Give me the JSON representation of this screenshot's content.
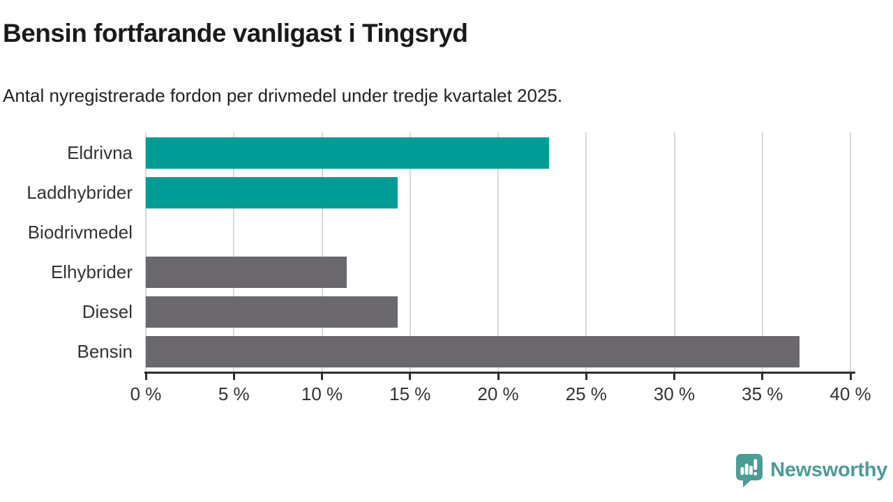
{
  "title": "Bensin fortfarande vanligast i Tingsryd",
  "subtitle": "Antal nyregistrerade fordon per drivmedel under tredje kvartalet 2025.",
  "chart_data": {
    "type": "bar",
    "orientation": "horizontal",
    "title": "Bensin fortfarande vanligast i Tingsryd",
    "subtitle": "Antal nyregistrerade fordon per drivmedel under tredje kvartalet 2025.",
    "categories": [
      "Eldrivna",
      "Laddhybrider",
      "Biodrivmedel",
      "Elhybrider",
      "Diesel",
      "Bensin"
    ],
    "values": [
      22.9,
      14.3,
      0,
      11.4,
      14.3,
      37.1
    ],
    "unit": "%",
    "xlim": [
      0,
      40
    ],
    "xticks": [
      0,
      5,
      10,
      15,
      20,
      25,
      30,
      35,
      40
    ],
    "xtick_labels": [
      "0 %",
      "5 %",
      "10 %",
      "15 %",
      "20 %",
      "25 %",
      "30 %",
      "35 %",
      "40 %"
    ],
    "grid": "vertical",
    "legend": "none",
    "bar_colors": [
      "#009C95",
      "#009C95",
      "#6A686C",
      "#6A686C",
      "#6A686C",
      "#6A686C"
    ]
  },
  "colors": {
    "highlight_teal": "#009C95",
    "base_gray": "#6A686C",
    "gridline": "#d8d8d8",
    "axis": "#2d2d2d",
    "title_text": "#1a1a1a",
    "label_text": "#333333",
    "logo_teal": "#4B9C97",
    "background": "#ffffff"
  },
  "footer": {
    "brand": "Newsworthy"
  }
}
